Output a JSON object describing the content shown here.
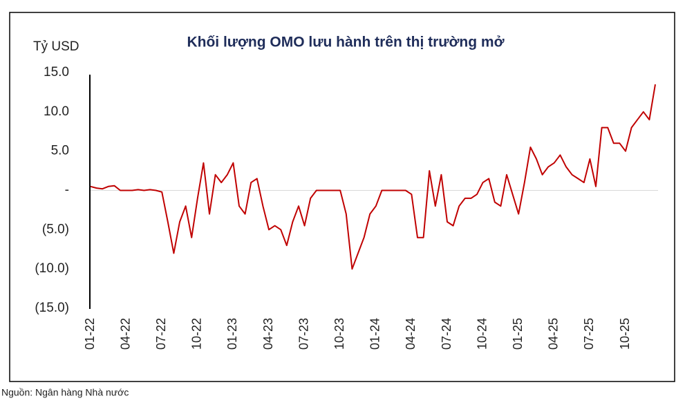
{
  "chart_data": {
    "type": "line",
    "title": "Khối lượng OMO lưu hành trên thị trường mở",
    "y_label": "Tỷ USD",
    "source": "Nguồn: Ngân hàng Nhà nước",
    "categories": [
      "01-22",
      null,
      null,
      null,
      null,
      null,
      "04-22",
      null,
      null,
      null,
      null,
      null,
      "07-22",
      null,
      null,
      null,
      null,
      null,
      "10-22",
      null,
      null,
      null,
      null,
      null,
      "01-23",
      null,
      null,
      null,
      null,
      null,
      "04-23",
      null,
      null,
      null,
      null,
      null,
      "07-23",
      null,
      null,
      null,
      null,
      null,
      "10-23",
      null,
      null,
      null,
      null,
      null,
      "01-24",
      null,
      null,
      null,
      null,
      null,
      "04-24",
      null,
      null,
      null,
      null,
      null,
      "07-24",
      null,
      null,
      null,
      null,
      null,
      "10-24",
      null,
      null,
      null,
      null,
      null,
      "01-25",
      null,
      null,
      null,
      null,
      null,
      "04-25",
      null,
      null,
      null,
      null,
      null,
      "07-25",
      null,
      null,
      null,
      null,
      null,
      "10-25",
      null,
      null,
      null,
      null,
      null
    ],
    "series": [
      {
        "name": "OMO",
        "color": "#c00000",
        "values": [
          0.5,
          0.3,
          0.2,
          0.5,
          0.6,
          0,
          0,
          0,
          0.1,
          0,
          0.1,
          0,
          -0.2,
          -4,
          -8,
          -4,
          -2,
          -6,
          -1,
          3.5,
          -3,
          2,
          1,
          2,
          3.5,
          -2,
          -3,
          1,
          1.5,
          -2,
          -5,
          -4.5,
          -5,
          -7,
          -4,
          -2,
          -4.5,
          -1,
          0,
          0,
          0,
          0,
          0,
          -3,
          -10,
          -8,
          -6,
          -3,
          -2,
          0,
          0,
          0,
          0,
          0,
          -0.5,
          -6,
          -6,
          2.5,
          -2,
          2,
          -4,
          -4.5,
          -2,
          -1,
          -1,
          -0.5,
          1,
          1.5,
          -1.5,
          -2,
          2,
          -0.5,
          -3,
          1,
          5.5,
          4,
          2,
          3,
          3.5,
          4.5,
          3,
          2,
          1.5,
          1,
          4,
          0.5,
          8,
          8,
          6,
          6,
          5,
          8,
          9,
          10,
          9,
          13.5
        ]
      }
    ],
    "ylim": [
      -15,
      15
    ],
    "yticks": [
      {
        "value": -15,
        "label": "(15.0)"
      },
      {
        "value": -10,
        "label": "(10.0)"
      },
      {
        "value": -5,
        "label": "(5.0)"
      },
      {
        "value": 0,
        "label": "-"
      },
      {
        "value": 5,
        "label": "5.0"
      },
      {
        "value": 10,
        "label": "10.0"
      },
      {
        "value": 15,
        "label": "15.0"
      }
    ],
    "grid": false
  }
}
